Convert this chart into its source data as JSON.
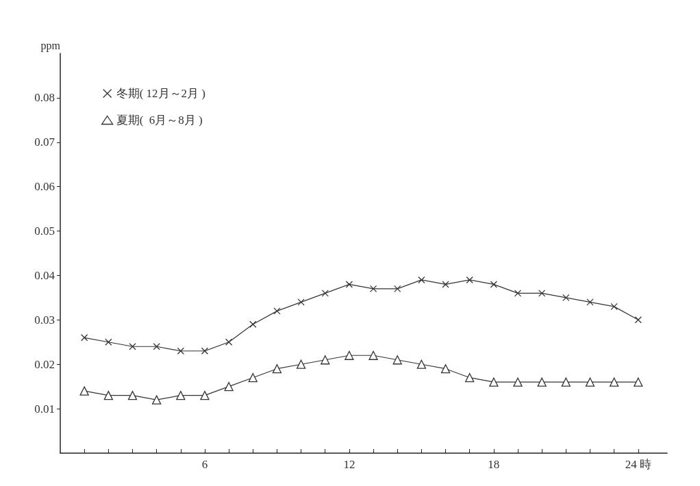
{
  "chart_data": {
    "type": "line",
    "ylabel": "ppm",
    "x": [
      1,
      2,
      3,
      4,
      5,
      6,
      7,
      8,
      9,
      10,
      11,
      12,
      13,
      14,
      15,
      16,
      17,
      18,
      19,
      20,
      21,
      22,
      23,
      24
    ],
    "series": [
      {
        "name": "冬期( 12月～2月 )",
        "color": "#333333",
        "marker": "cross",
        "values": [
          0.026,
          0.025,
          0.024,
          0.024,
          0.023,
          0.023,
          0.025,
          0.029,
          0.032,
          0.034,
          0.036,
          0.038,
          0.037,
          0.037,
          0.039,
          0.038,
          0.039,
          0.038,
          0.036,
          0.036,
          0.035,
          0.034,
          0.033,
          0.03
        ]
      },
      {
        "name": "夏期(  6月～8月 )",
        "color": "#333333",
        "marker": "triangle",
        "values": [
          0.014,
          0.013,
          0.013,
          0.012,
          0.013,
          0.013,
          0.015,
          0.017,
          0.019,
          0.02,
          0.021,
          0.022,
          0.022,
          0.021,
          0.02,
          0.019,
          0.017,
          0.016,
          0.016,
          0.016,
          0.016,
          0.016,
          0.016,
          0.016
        ]
      }
    ],
    "xlim": [
      0,
      25.2
    ],
    "xticks": [
      {
        "value": 1,
        "label": null
      },
      {
        "value": 2,
        "label": null
      },
      {
        "value": 3,
        "label": null
      },
      {
        "value": 4,
        "label": null
      },
      {
        "value": 5,
        "label": null
      },
      6,
      {
        "value": 7,
        "label": null
      },
      {
        "value": 8,
        "label": null
      },
      {
        "value": 9,
        "label": null
      },
      {
        "value": 10,
        "label": null
      },
      {
        "value": 11,
        "label": null
      },
      12,
      {
        "value": 13,
        "label": null
      },
      {
        "value": 14,
        "label": null
      },
      {
        "value": 15,
        "label": null
      },
      {
        "value": 16,
        "label": null
      },
      {
        "value": 17,
        "label": null
      },
      18,
      {
        "value": 19,
        "label": null
      },
      {
        "value": 20,
        "label": null
      },
      {
        "value": 21,
        "label": null
      },
      {
        "value": 22,
        "label": null
      },
      {
        "value": 23,
        "label": null
      },
      {
        "value": 24,
        "label": "24 時"
      }
    ],
    "ylim": [
      0,
      0.09
    ],
    "yticks": [
      0.01,
      0.02,
      0.03,
      0.04,
      0.05,
      0.06,
      0.07,
      0.08
    ],
    "grid": false,
    "legend": "top left",
    "line_style": "solid"
  }
}
